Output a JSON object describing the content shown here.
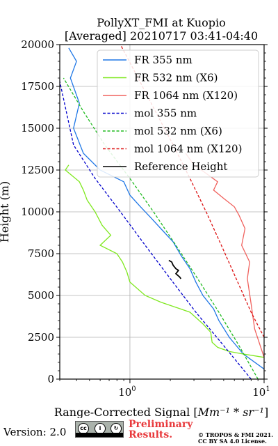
{
  "chart_data": {
    "type": "line",
    "title_line1": "PollyXT_FMI at Kuopio",
    "title_line2": "[Averaged] 20210717 03:41-04:40",
    "xlabel_prefix": "Range-Corrected Signal [",
    "xlabel_math": "Mm⁻¹ * sr⁻¹",
    "xlabel_suffix": "]",
    "ylabel": "Height (m)",
    "xscale": "log",
    "xlim": [
      0.3,
      10
    ],
    "ylim": [
      0,
      20000
    ],
    "yticks": [
      0,
      2500,
      5000,
      7500,
      10000,
      12500,
      15000,
      17500,
      20000
    ],
    "xticks": [
      {
        "value": 1,
        "base": "10",
        "exp": "0"
      },
      {
        "value": 10,
        "base": "10",
        "exp": "1"
      }
    ],
    "grid": true,
    "legend_position": "upper right",
    "series": [
      {
        "name": "FR 355 nm",
        "color": "#1f77e6",
        "style": "solid",
        "points": [
          [
            10,
            600
          ],
          [
            7,
            1500
          ],
          [
            5.5,
            2500
          ],
          [
            4.6,
            3500
          ],
          [
            4.2,
            4200
          ],
          [
            3.5,
            5000
          ],
          [
            3.1,
            5800
          ],
          [
            2.8,
            6600
          ],
          [
            2.4,
            7400
          ],
          [
            2.1,
            8200
          ],
          [
            1.7,
            9000
          ],
          [
            1.45,
            9600
          ],
          [
            1.2,
            10300
          ],
          [
            1.0,
            11000
          ],
          [
            0.9,
            11800
          ],
          [
            0.6,
            12500
          ],
          [
            0.45,
            13500
          ],
          [
            0.38,
            15000
          ],
          [
            0.42,
            16500
          ],
          [
            0.36,
            18000
          ],
          [
            0.4,
            19000
          ],
          [
            0.35,
            19800
          ]
        ]
      },
      {
        "name": "FR 532 nm (X6)",
        "color": "#7fe81f",
        "style": "solid",
        "points": [
          [
            10,
            1300
          ],
          [
            7,
            1500
          ],
          [
            5.5,
            1650
          ],
          [
            4.5,
            1900
          ],
          [
            4.1,
            2200
          ],
          [
            4.0,
            2800
          ],
          [
            3.5,
            3300
          ],
          [
            2.8,
            4000
          ],
          [
            1.7,
            4600
          ],
          [
            1.3,
            5000
          ],
          [
            1.0,
            5800
          ],
          [
            0.95,
            6400
          ],
          [
            0.88,
            7000
          ],
          [
            0.8,
            7500
          ],
          [
            0.6,
            8000
          ],
          [
            0.72,
            8600
          ],
          [
            0.62,
            9200
          ],
          [
            0.55,
            10000
          ],
          [
            0.48,
            10700
          ],
          [
            0.45,
            11300
          ],
          [
            0.42,
            11800
          ],
          [
            0.33,
            12500
          ],
          [
            0.35,
            12800
          ]
        ]
      },
      {
        "name": "FR 1064 nm (X120)",
        "color": "#f0625e",
        "style": "solid",
        "points": [
          [
            10,
            1300
          ],
          [
            8.5,
            3000
          ],
          [
            8.0,
            4500
          ],
          [
            7.5,
            6000
          ],
          [
            7.8,
            7000
          ],
          [
            6.8,
            8000
          ],
          [
            7.2,
            9000
          ],
          [
            6.5,
            9800
          ],
          [
            6.0,
            10300
          ],
          [
            5.0,
            10800
          ],
          [
            4.2,
            11300
          ],
          [
            4.5,
            11800
          ],
          [
            3.7,
            12300
          ],
          [
            3.0,
            12800
          ],
          [
            2.6,
            13500
          ]
        ]
      },
      {
        "name": "mol 355 nm",
        "color": "#0000cc",
        "style": "dashed",
        "points": [
          [
            8.0,
            0
          ],
          [
            5.0,
            2000
          ],
          [
            3.1,
            4000
          ],
          [
            2.0,
            6000
          ],
          [
            1.3,
            8000
          ],
          [
            0.85,
            10000
          ],
          [
            0.55,
            12000
          ],
          [
            0.38,
            14000
          ],
          [
            0.3,
            17800
          ]
        ]
      },
      {
        "name": "mol 532 nm (X6)",
        "color": "#22bb22",
        "style": "dashed",
        "points": [
          [
            9.0,
            0
          ],
          [
            6.5,
            2000
          ],
          [
            4.6,
            4000
          ],
          [
            3.2,
            6000
          ],
          [
            2.2,
            8000
          ],
          [
            1.5,
            10000
          ],
          [
            1.0,
            12000
          ],
          [
            0.65,
            14000
          ],
          [
            0.45,
            16000
          ],
          [
            0.32,
            18000
          ]
        ]
      },
      {
        "name": "mol 1064 nm (X120)",
        "color": "#dd1111",
        "style": "dashed",
        "points": [
          [
            10,
            2500
          ],
          [
            8.0,
            4000
          ],
          [
            6.2,
            6000
          ],
          [
            4.8,
            8000
          ],
          [
            3.7,
            10000
          ],
          [
            2.8,
            12000
          ],
          [
            2.1,
            14000
          ],
          [
            1.55,
            16000
          ],
          [
            1.15,
            18000
          ],
          [
            0.85,
            20000
          ]
        ]
      },
      {
        "name": "Reference Height",
        "color": "#000000",
        "style": "solid",
        "points": [
          [
            1.95,
            7100
          ],
          [
            2.05,
            7000
          ],
          [
            2.1,
            6800
          ],
          [
            2.2,
            6600
          ],
          [
            2.3,
            6500
          ],
          [
            2.2,
            6300
          ],
          [
            2.35,
            6100
          ],
          [
            2.4,
            6000
          ]
        ]
      }
    ]
  },
  "footer": {
    "version": "Version: 2.0",
    "preliminary_line1": "Preliminary",
    "preliminary_line2": "Results.",
    "copyright_line1": "© TROPOS & FMI 2021.",
    "copyright_line2": "CC BY SA 4.0 License.",
    "cc_badge": {
      "cc": "cc",
      "by": "BY",
      "sa": "SA"
    }
  }
}
